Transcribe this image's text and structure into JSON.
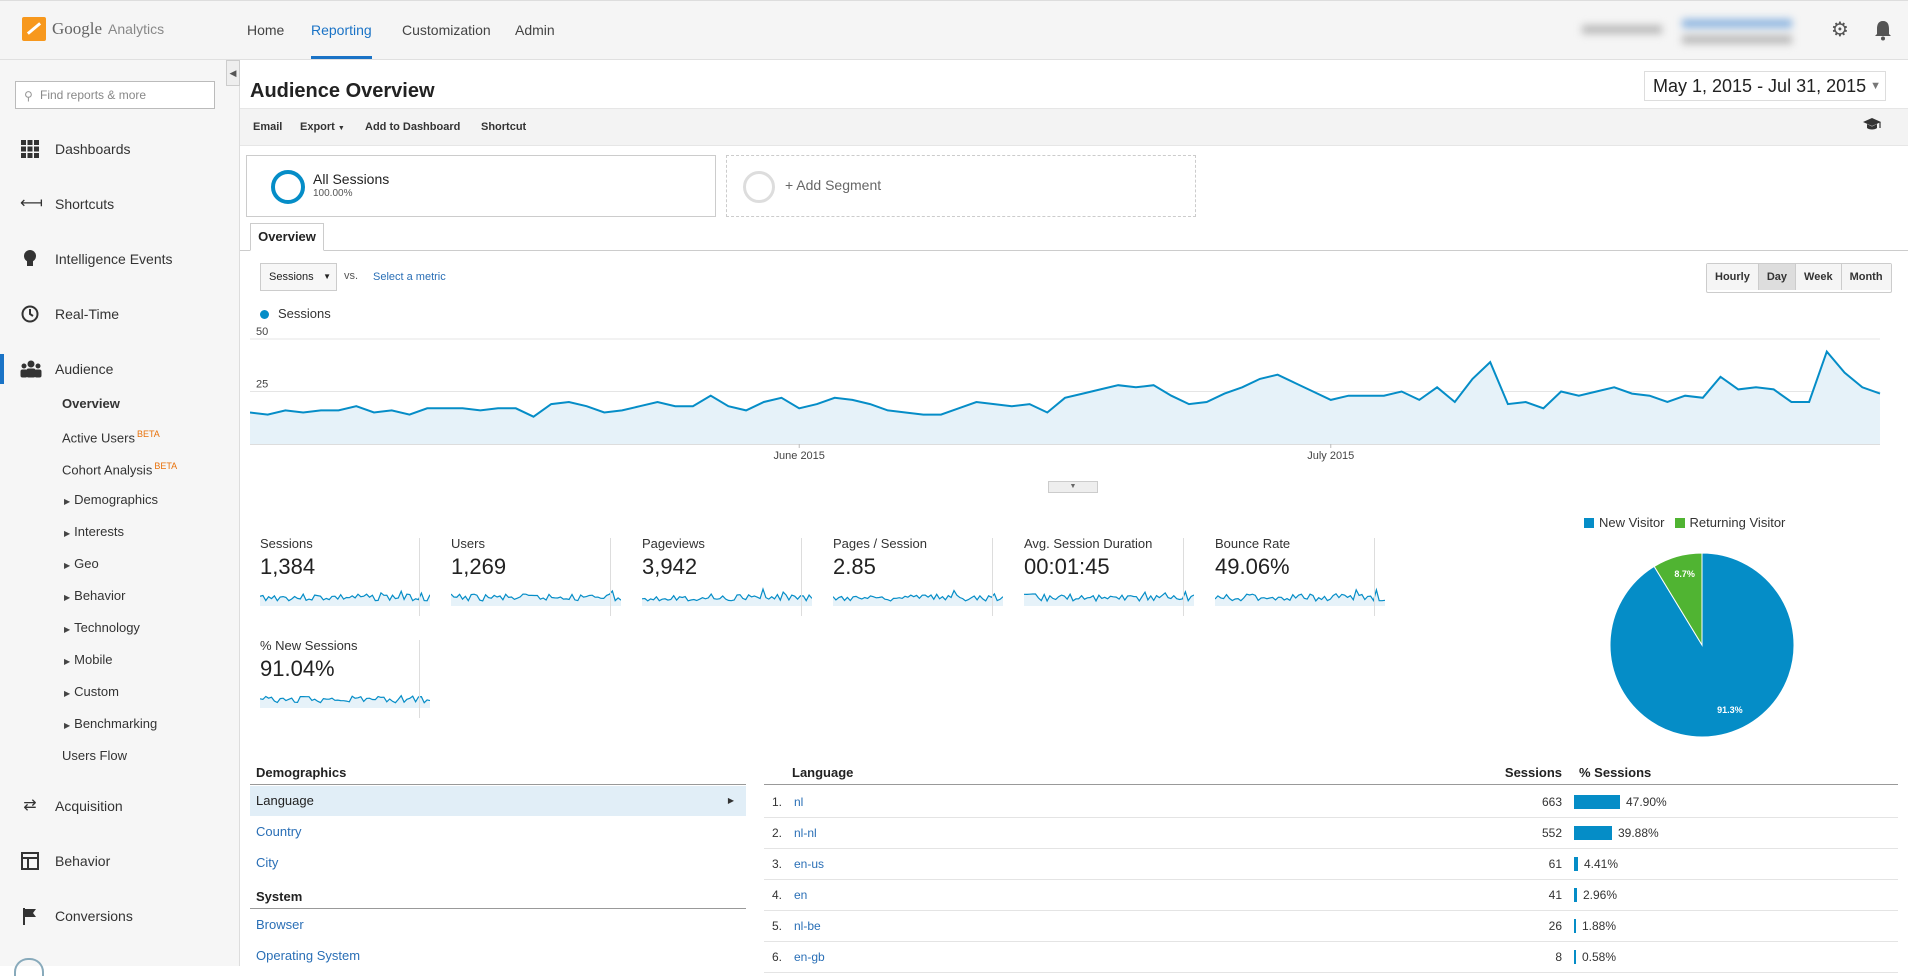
{
  "app": {
    "logo_google": "Google",
    "logo_analytics": "Analytics"
  },
  "topnav": {
    "home": "Home",
    "reporting": "Reporting",
    "customization": "Customization",
    "admin": "Admin"
  },
  "sidebar": {
    "search_placeholder": "Find reports & more",
    "items": {
      "dashboards": "Dashboards",
      "shortcuts": "Shortcuts",
      "intelligence": "Intelligence Events",
      "realtime": "Real-Time",
      "audience": "Audience",
      "acquisition": "Acquisition",
      "behavior": "Behavior",
      "conversions": "Conversions"
    },
    "audience_sub": {
      "overview": "Overview",
      "active_users": "Active Users",
      "cohort": "Cohort Analysis",
      "beta": "BETA",
      "demographics": "Demographics",
      "interests": "Interests",
      "geo": "Geo",
      "behavior": "Behavior",
      "technology": "Technology",
      "mobile": "Mobile",
      "custom": "Custom",
      "benchmarking": "Benchmarking",
      "users_flow": "Users Flow"
    }
  },
  "header": {
    "title": "Audience Overview",
    "date_range": "May 1, 2015 - Jul 31, 2015"
  },
  "toolbar": {
    "email": "Email",
    "export": "Export",
    "add_dashboard": "Add to Dashboard",
    "shortcut": "Shortcut"
  },
  "segments": {
    "all_name": "All Sessions",
    "all_pct": "100.00%",
    "add": "+ Add Segment"
  },
  "tabs": {
    "overview": "Overview"
  },
  "chart_controls": {
    "metric": "Sessions",
    "vs": "vs.",
    "select_metric": "Select a metric",
    "granularity": [
      "Hourly",
      "Day",
      "Week",
      "Month"
    ],
    "active": "Day"
  },
  "colors": {
    "accent": "#058dc7",
    "returning": "#50b432",
    "link": "#2a6fb6"
  },
  "chart_data": [
    {
      "type": "area",
      "series": [
        {
          "name": "Sessions",
          "values": [
            15,
            14,
            16,
            15,
            16,
            16,
            18,
            15,
            16,
            14,
            17,
            17,
            17,
            16,
            17,
            17,
            13,
            19,
            20,
            18,
            15,
            16,
            18,
            20,
            18,
            18,
            23,
            18,
            16,
            20,
            22,
            17,
            19,
            22,
            21,
            19,
            16,
            15,
            14,
            14,
            17,
            20,
            19,
            18,
            19,
            15,
            22,
            24,
            26,
            28,
            27,
            28,
            23,
            19,
            20,
            24,
            27,
            31,
            33,
            29,
            25,
            21,
            23,
            23,
            23,
            25,
            21,
            27,
            20,
            31,
            39,
            19,
            20,
            17,
            25,
            23,
            25,
            27,
            24,
            23,
            20,
            23,
            22,
            32,
            26,
            27,
            26,
            20,
            20,
            44,
            34,
            27,
            24
          ]
        }
      ],
      "x_tick_labels": [
        "June 2015",
        "July 2015"
      ],
      "y_tick_labels": [
        "25",
        "50"
      ],
      "ylim": [
        0,
        50
      ],
      "legend": "top-left"
    },
    {
      "type": "pie",
      "labels": [
        "New Visitor",
        "Returning Visitor"
      ],
      "values": [
        91.3,
        8.7
      ],
      "data_labels": [
        "91.3%",
        "8.7%"
      ],
      "legend": "top"
    }
  ],
  "metrics": [
    {
      "label": "Sessions",
      "value": "1,384"
    },
    {
      "label": "Users",
      "value": "1,269"
    },
    {
      "label": "Pageviews",
      "value": "3,942"
    },
    {
      "label": "Pages / Session",
      "value": "2.85"
    },
    {
      "label": "Avg. Session Duration",
      "value": "00:01:45"
    },
    {
      "label": "Bounce Rate",
      "value": "49.06%"
    },
    {
      "label": "% New Sessions",
      "value": "91.04%"
    }
  ],
  "demographics": {
    "heading": "Demographics",
    "items": [
      "Language",
      "Country",
      "City"
    ],
    "system_heading": "System",
    "system_items": [
      "Browser",
      "Operating System"
    ]
  },
  "language_table": {
    "headers": {
      "name": "Language",
      "sessions": "Sessions",
      "pct": "% Sessions"
    },
    "rows": [
      {
        "rank": "1.",
        "name": "nl",
        "sessions": "663",
        "pct": "47.90%",
        "fraction": 0.479
      },
      {
        "rank": "2.",
        "name": "nl-nl",
        "sessions": "552",
        "pct": "39.88%",
        "fraction": 0.3988
      },
      {
        "rank": "3.",
        "name": "en-us",
        "sessions": "61",
        "pct": "4.41%",
        "fraction": 0.0441
      },
      {
        "rank": "4.",
        "name": "en",
        "sessions": "41",
        "pct": "2.96%",
        "fraction": 0.0296
      },
      {
        "rank": "5.",
        "name": "nl-be",
        "sessions": "26",
        "pct": "1.88%",
        "fraction": 0.0188
      },
      {
        "rank": "6.",
        "name": "en-gb",
        "sessions": "8",
        "pct": "0.58%",
        "fraction": 0.0058
      }
    ]
  }
}
